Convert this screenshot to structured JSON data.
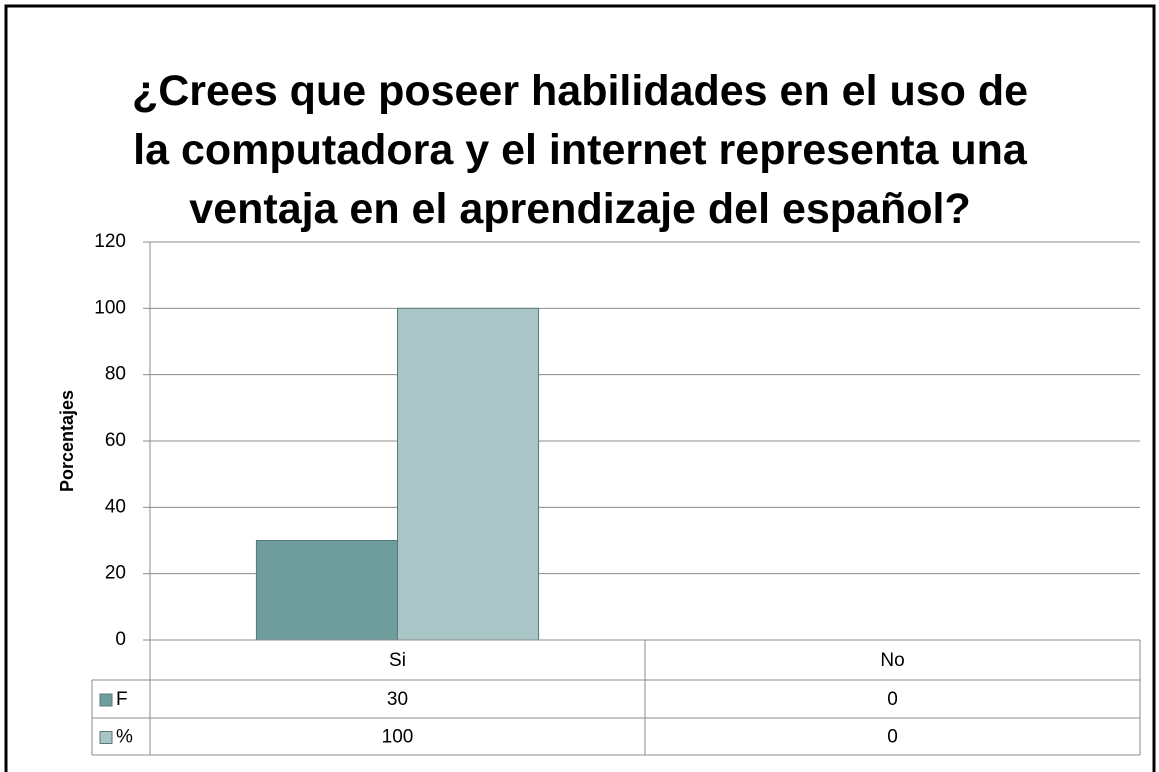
{
  "chart_data": {
    "type": "bar",
    "title": "¿Crees que poseer habilidades en el uso de la computadora y el internet representa una ventaja en el aprendizaje del español?",
    "y_label": "Porcentajes",
    "categories": [
      "Si",
      "No"
    ],
    "series": [
      {
        "name": "F",
        "color": "#6f9c9c",
        "values": [
          30,
          0
        ]
      },
      {
        "name": "%",
        "color": "#a9c5c5",
        "values": [
          100,
          0
        ]
      }
    ],
    "ylim": [
      0,
      120
    ],
    "yticks": [
      0,
      20,
      40,
      60,
      80,
      100,
      120
    ],
    "grid": true,
    "data_table": true
  }
}
